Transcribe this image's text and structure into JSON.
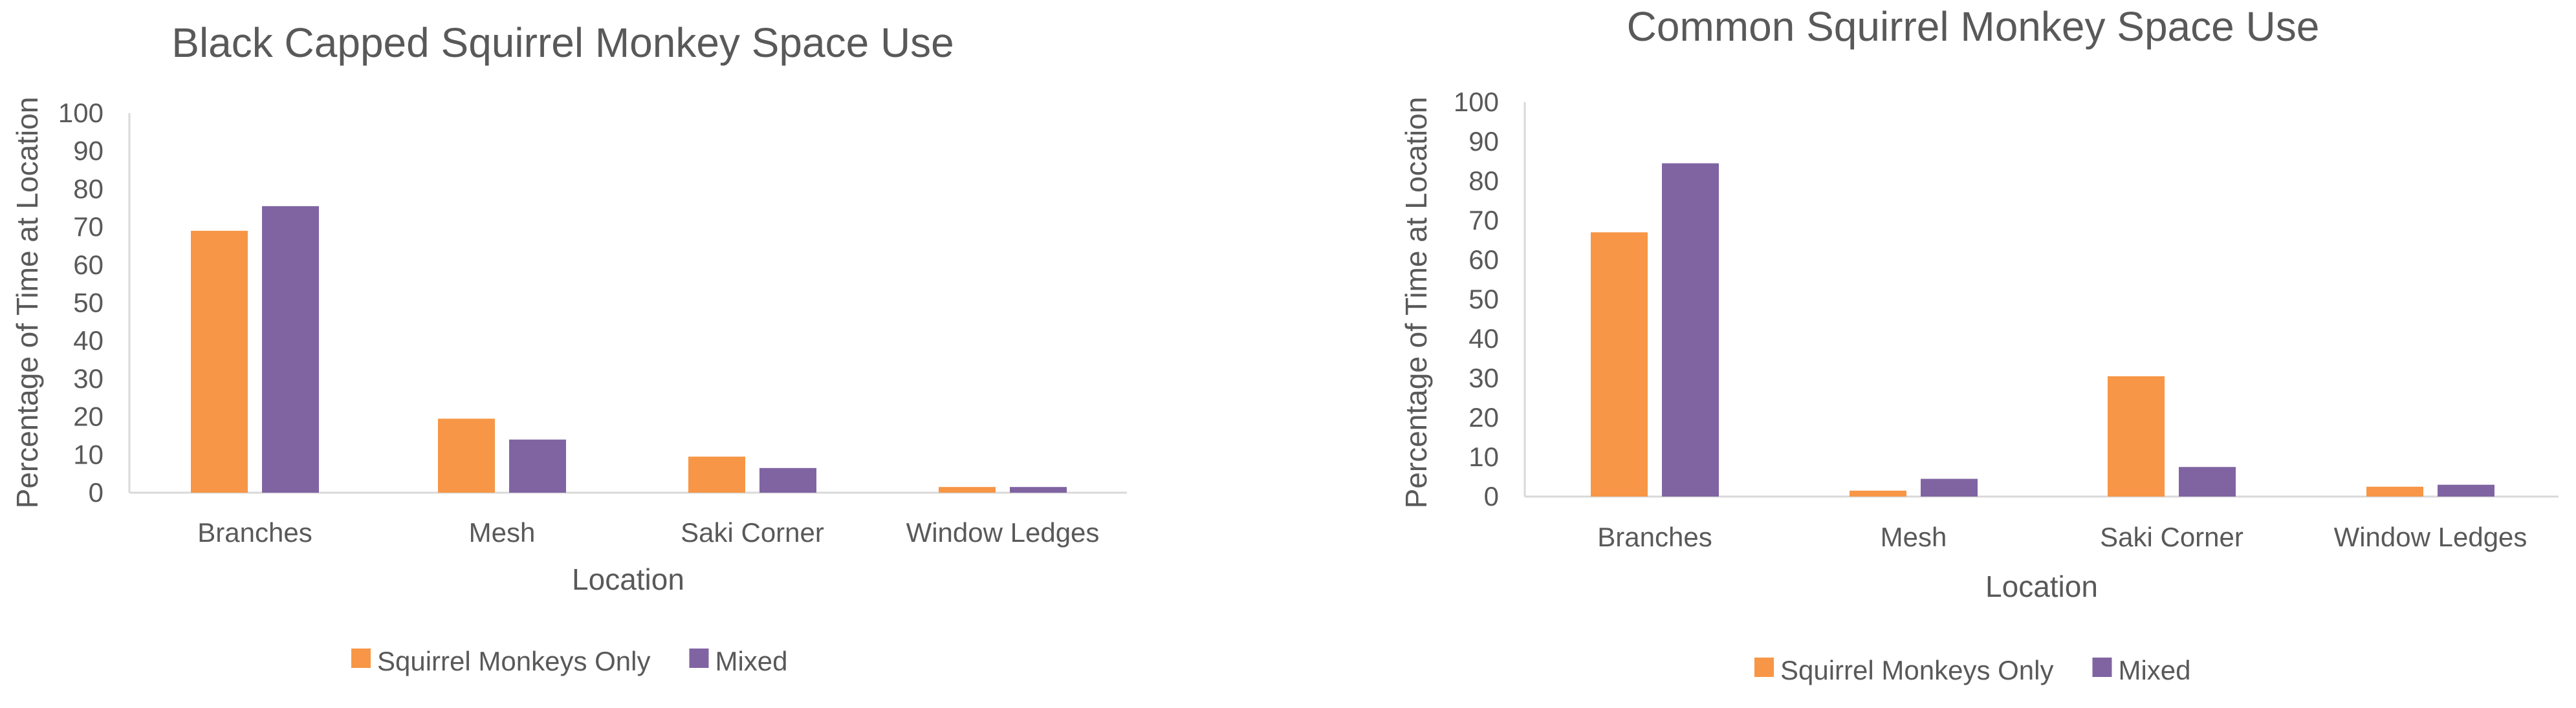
{
  "chart_data": [
    {
      "type": "bar",
      "title": "Black Capped Squirrel Monkey Space Use",
      "xlabel": "Location",
      "ylabel": "Percentage of Time at Location",
      "categories": [
        "Branches",
        "Mesh",
        "Saki Corner",
        "Window Ledges"
      ],
      "yticks": [
        "0",
        "10",
        "20",
        "30",
        "40",
        "50",
        "60",
        "70",
        "80",
        "90",
        "100"
      ],
      "ylim": [
        0,
        100
      ],
      "grid": false,
      "legend_position": "bottom",
      "series": [
        {
          "name": "Squirrel Monkeys Only",
          "color": "#F79646",
          "values": [
            69,
            19.5,
            9.5,
            1.5
          ]
        },
        {
          "name": "Mixed",
          "color": "#8064A2",
          "values": [
            75.5,
            14,
            6.5,
            1.5
          ]
        }
      ]
    },
    {
      "type": "bar",
      "title": "Common Squirrel Monkey Space Use",
      "xlabel": "Location",
      "ylabel": "Percentage of Time at Location",
      "categories": [
        "Branches",
        "Mesh",
        "Saki Corner",
        "Window Ledges"
      ],
      "yticks": [
        "0",
        "10",
        "20",
        "30",
        "40",
        "50",
        "60",
        "70",
        "80",
        "90",
        "100"
      ],
      "ylim": [
        0,
        100
      ],
      "grid": false,
      "legend_position": "bottom",
      "series": [
        {
          "name": "Squirrel Monkeys Only",
          "color": "#F79646",
          "values": [
            67,
            1.5,
            30.5,
            2.5
          ]
        },
        {
          "name": "Mixed",
          "color": "#8064A2",
          "values": [
            84.5,
            4.5,
            7.5,
            3
          ]
        }
      ]
    }
  ]
}
